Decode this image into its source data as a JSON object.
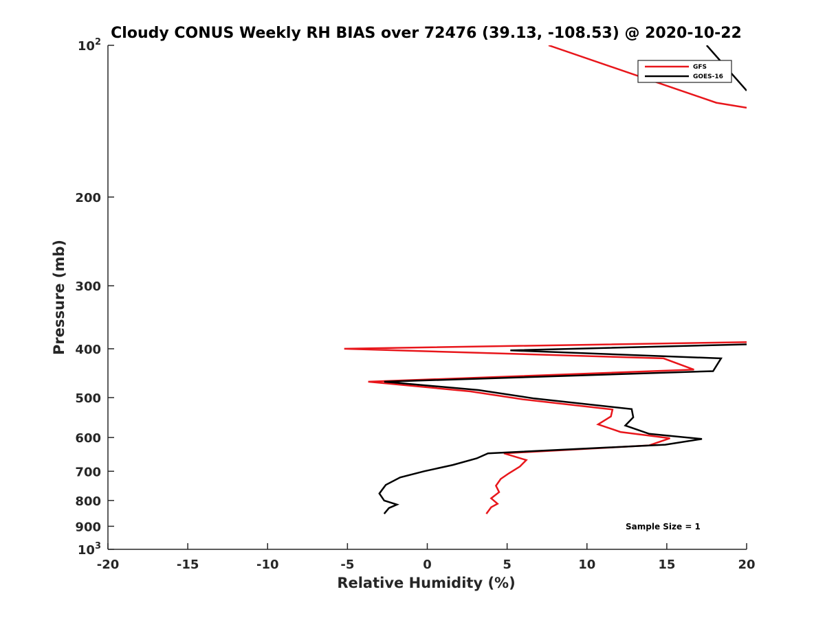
{
  "chart_data": {
    "type": "line",
    "title": "Cloudy CONUS Weekly RH BIAS over 72476 (39.13, -108.53) @ 2020-10-22",
    "xlabel": "Relative Humidity (%)",
    "ylabel": "Pressure (mb)",
    "xlim": [
      -20,
      20
    ],
    "ylim": [
      100,
      1000
    ],
    "yscale": "log",
    "y_reversed": true,
    "x_ticks": [
      "-20",
      "-15",
      "-10",
      "-5",
      "0",
      "5",
      "10",
      "15",
      "20"
    ],
    "y_ticks": [
      {
        "value": 100,
        "base": "10",
        "exp": "2"
      },
      {
        "value": 200,
        "label": "200"
      },
      {
        "value": 300,
        "label": "300"
      },
      {
        "value": 400,
        "label": "400"
      },
      {
        "value": 500,
        "label": "500"
      },
      {
        "value": 600,
        "label": "600"
      },
      {
        "value": 700,
        "label": "700"
      },
      {
        "value": 800,
        "label": "800"
      },
      {
        "value": 900,
        "label": "900"
      },
      {
        "value": 1000,
        "base": "10",
        "exp": "3"
      }
    ],
    "grid": false,
    "legend_position": "top-right",
    "series": [
      {
        "name": "GFS",
        "color": "#e8161b",
        "points": [
          [
            7.6,
            100
          ],
          [
            18.1,
            130
          ],
          [
            20,
            133
          ],
          null,
          [
            20,
            388
          ],
          [
            -5.2,
            400
          ],
          [
            14.8,
            418
          ],
          [
            16.7,
            440
          ],
          [
            -3.7,
            465
          ],
          [
            2.7,
            486
          ],
          [
            6.0,
            504
          ],
          [
            11.6,
            528
          ],
          [
            11.5,
            545
          ],
          [
            10.7,
            565
          ],
          [
            12.1,
            585
          ],
          [
            15.2,
            602
          ],
          [
            13.9,
            622
          ],
          [
            4.8,
            645
          ],
          [
            6.2,
            665
          ],
          [
            5.8,
            685
          ],
          [
            5.1,
            707
          ],
          [
            4.6,
            725
          ],
          [
            4.3,
            748
          ],
          [
            4.5,
            770
          ],
          [
            4.0,
            792
          ],
          [
            4.4,
            812
          ],
          [
            4.0,
            825
          ],
          [
            3.7,
            850
          ]
        ]
      },
      {
        "name": "GOES-16",
        "color": "#000000",
        "points": [
          [
            17.5,
            100
          ],
          [
            20,
            123
          ],
          null,
          [
            20,
            392
          ],
          [
            5.2,
            403
          ],
          [
            18.4,
            418
          ],
          [
            17.9,
            443
          ],
          [
            -2.7,
            465
          ],
          [
            3.2,
            483
          ],
          [
            6.7,
            502
          ],
          [
            12.8,
            527
          ],
          [
            12.9,
            547
          ],
          [
            12.4,
            568
          ],
          [
            13.9,
            590
          ],
          [
            17.2,
            604
          ],
          [
            14.9,
            620
          ],
          [
            3.8,
            645
          ],
          [
            3.1,
            660
          ],
          [
            1.6,
            680
          ],
          [
            -0.2,
            700
          ],
          [
            -1.7,
            720
          ],
          [
            -2.6,
            745
          ],
          [
            -3.0,
            775
          ],
          [
            -2.7,
            800
          ],
          [
            -1.9,
            815
          ],
          [
            -2.4,
            828
          ],
          [
            -2.7,
            850
          ]
        ]
      }
    ],
    "annotations": [
      "Sample Size = 1"
    ]
  }
}
